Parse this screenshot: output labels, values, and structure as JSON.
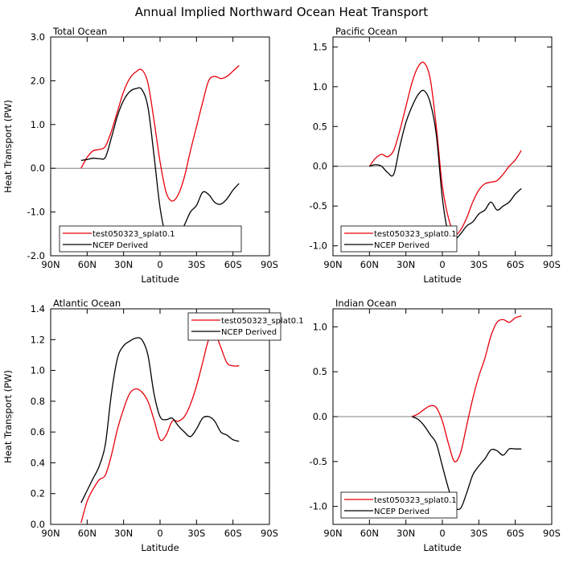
{
  "figure": {
    "title": "Annual Implied Northward Ocean Heat Transport",
    "colors": {
      "model": "#e8000b",
      "ncep": "#000000",
      "zero_line": "#808080"
    }
  },
  "chart_data": [
    {
      "type": "line",
      "title": "Total Ocean",
      "xlabel": "Latitude",
      "ylabel": "Heat Transport (PW)",
      "xlim": [
        -90,
        90
      ],
      "ylim": [
        -2.0,
        3.0
      ],
      "x_ticks": [
        -90,
        -60,
        -30,
        0,
        30,
        60,
        90
      ],
      "x_tick_labels": [
        "90N",
        "60N",
        "30N",
        "0",
        "30S",
        "60S",
        "90S"
      ],
      "y_ticks": [
        -2.0,
        -1.0,
        0.0,
        1.0,
        2.0,
        3.0
      ],
      "y_tick_labels": [
        "-2.0",
        "-1.0",
        "0.0",
        "1.0",
        "2.0",
        "3.0"
      ],
      "zero_line": true,
      "legend": {
        "position": "bottom-left",
        "entries": [
          "test050323_splat0.1",
          "NCEP Derived"
        ]
      },
      "series": [
        {
          "name": "test050323_splat0.1",
          "color": "#e8000b",
          "x": [
            -65,
            -60,
            -55,
            -50,
            -45,
            -40,
            -35,
            -30,
            -25,
            -20,
            -15,
            -10,
            -5,
            0,
            5,
            10,
            15,
            20,
            25,
            30,
            35,
            40,
            45,
            50,
            55,
            60,
            65
          ],
          "y": [
            0.0,
            0.25,
            0.4,
            0.43,
            0.5,
            0.85,
            1.3,
            1.75,
            2.05,
            2.2,
            2.25,
            1.95,
            1.1,
            0.15,
            -0.55,
            -0.75,
            -0.6,
            -0.2,
            0.4,
            0.95,
            1.5,
            2.0,
            2.1,
            2.05,
            2.1,
            2.22,
            2.35
          ]
        },
        {
          "name": "NCEP Derived",
          "color": "#000000",
          "x": [
            -65,
            -60,
            -55,
            -50,
            -45,
            -40,
            -35,
            -30,
            -25,
            -20,
            -15,
            -10,
            -5,
            0,
            5,
            10,
            15,
            20,
            25,
            30,
            35,
            40,
            45,
            50,
            55,
            60,
            65
          ],
          "y": [
            0.18,
            0.2,
            0.23,
            0.22,
            0.25,
            0.7,
            1.2,
            1.55,
            1.75,
            1.82,
            1.8,
            1.4,
            0.3,
            -0.9,
            -1.55,
            -1.65,
            -1.55,
            -1.3,
            -1.0,
            -0.85,
            -0.55,
            -0.6,
            -0.78,
            -0.82,
            -0.7,
            -0.5,
            -0.35
          ]
        }
      ]
    },
    {
      "type": "line",
      "title": "Pacific Ocean",
      "xlabel": "Latitude",
      "ylabel": "",
      "xlim": [
        -90,
        90
      ],
      "ylim": [
        -1.125,
        1.625
      ],
      "x_ticks": [
        -90,
        -60,
        -30,
        0,
        30,
        60,
        90
      ],
      "x_tick_labels": [
        "90N",
        "60N",
        "30N",
        "0",
        "30S",
        "60S",
        "90S"
      ],
      "y_ticks": [
        -1.0,
        -0.5,
        0.0,
        0.5,
        1.0,
        1.5
      ],
      "y_tick_labels": [
        "-1.0",
        "-0.5",
        "0.0",
        "0.5",
        "1.0",
        "1.5"
      ],
      "zero_line": true,
      "legend": {
        "position": "bottom-left",
        "entries": [
          "test050323_splat0.1",
          "NCEP Derived"
        ]
      },
      "series": [
        {
          "name": "test050323_splat0.1",
          "color": "#e8000b",
          "x": [
            -60,
            -55,
            -50,
            -45,
            -40,
            -35,
            -30,
            -25,
            -20,
            -15,
            -10,
            -5,
            0,
            5,
            10,
            15,
            20,
            25,
            30,
            35,
            40,
            45,
            50,
            55,
            60,
            65
          ],
          "y": [
            0.0,
            0.1,
            0.15,
            0.12,
            0.2,
            0.45,
            0.75,
            1.05,
            1.25,
            1.3,
            1.1,
            0.5,
            -0.25,
            -0.65,
            -0.85,
            -0.8,
            -0.65,
            -0.45,
            -0.3,
            -0.22,
            -0.2,
            -0.18,
            -0.1,
            0.0,
            0.08,
            0.2
          ]
        },
        {
          "name": "NCEP Derived",
          "color": "#000000",
          "x": [
            -60,
            -55,
            -50,
            -45,
            -40,
            -35,
            -30,
            -25,
            -20,
            -15,
            -10,
            -5,
            0,
            5,
            10,
            15,
            20,
            25,
            30,
            35,
            40,
            45,
            50,
            55,
            60,
            65
          ],
          "y": [
            0.0,
            0.02,
            0.0,
            -0.08,
            -0.1,
            0.25,
            0.55,
            0.75,
            0.9,
            0.95,
            0.8,
            0.4,
            -0.4,
            -0.85,
            -0.92,
            -0.85,
            -0.75,
            -0.7,
            -0.6,
            -0.55,
            -0.45,
            -0.55,
            -0.5,
            -0.45,
            -0.35,
            -0.28
          ]
        }
      ]
    },
    {
      "type": "line",
      "title": "Atlantic Ocean",
      "xlabel": "Latitude",
      "ylabel": "Heat Transport (PW)",
      "xlim": [
        -90,
        90
      ],
      "ylim": [
        0.0,
        1.4
      ],
      "x_ticks": [
        -90,
        -60,
        -30,
        0,
        30,
        60,
        90
      ],
      "x_tick_labels": [
        "90N",
        "60N",
        "30N",
        "0",
        "30S",
        "60S",
        "90S"
      ],
      "y_ticks": [
        0.0,
        0.2,
        0.4,
        0.6,
        0.8,
        1.0,
        1.2,
        1.4
      ],
      "y_tick_labels": [
        "0.0",
        "0.2",
        "0.4",
        "0.6",
        "0.8",
        "1.0",
        "1.2",
        "1.4"
      ],
      "zero_line": false,
      "legend": {
        "position": "top-right",
        "entries": [
          "test050323_splat0.1",
          "NCEP Derived"
        ]
      },
      "series": [
        {
          "name": "test050323_splat0.1",
          "color": "#e8000b",
          "x": [
            -65,
            -60,
            -55,
            -50,
            -45,
            -40,
            -35,
            -30,
            -25,
            -20,
            -15,
            -10,
            -5,
            0,
            5,
            10,
            15,
            20,
            25,
            30,
            35,
            40,
            45,
            50,
            55,
            60,
            65
          ],
          "y": [
            0.01,
            0.15,
            0.23,
            0.29,
            0.32,
            0.45,
            0.62,
            0.75,
            0.85,
            0.88,
            0.86,
            0.8,
            0.68,
            0.55,
            0.58,
            0.67,
            0.67,
            0.7,
            0.78,
            0.9,
            1.05,
            1.2,
            1.24,
            1.15,
            1.05,
            1.03,
            1.03
          ]
        },
        {
          "name": "NCEP Derived",
          "color": "#000000",
          "x": [
            -65,
            -60,
            -55,
            -50,
            -45,
            -40,
            -35,
            -30,
            -25,
            -20,
            -15,
            -10,
            -5,
            0,
            5,
            10,
            15,
            20,
            25,
            30,
            35,
            40,
            45,
            50,
            55,
            60,
            65
          ],
          "y": [
            0.14,
            0.22,
            0.3,
            0.38,
            0.52,
            0.85,
            1.08,
            1.16,
            1.19,
            1.21,
            1.2,
            1.1,
            0.85,
            0.7,
            0.68,
            0.69,
            0.64,
            0.6,
            0.57,
            0.62,
            0.69,
            0.7,
            0.67,
            0.6,
            0.58,
            0.55,
            0.54
          ]
        }
      ]
    },
    {
      "type": "line",
      "title": "Indian Ocean",
      "xlabel": "Latitude",
      "ylabel": "",
      "xlim": [
        -90,
        90
      ],
      "ylim": [
        -1.2,
        1.2
      ],
      "x_ticks": [
        -90,
        -60,
        -30,
        0,
        30,
        60,
        90
      ],
      "x_tick_labels": [
        "90N",
        "60N",
        "30N",
        "0",
        "30S",
        "60S",
        "90S"
      ],
      "y_ticks": [
        -1.0,
        -0.5,
        0.0,
        0.5,
        1.0
      ],
      "y_tick_labels": [
        "-1.0",
        "-0.5",
        "0.0",
        "0.5",
        "1.0"
      ],
      "zero_line": true,
      "legend": {
        "position": "bottom-left",
        "entries": [
          "test050323_splat0.1",
          "NCEP Derived"
        ]
      },
      "series": [
        {
          "name": "test050323_splat0.1",
          "color": "#e8000b",
          "x": [
            -25,
            -20,
            -15,
            -10,
            -5,
            0,
            5,
            10,
            15,
            20,
            25,
            30,
            35,
            40,
            45,
            50,
            55,
            60,
            65
          ],
          "y": [
            0.0,
            0.03,
            0.08,
            0.12,
            0.1,
            -0.05,
            -0.3,
            -0.5,
            -0.4,
            -0.1,
            0.2,
            0.45,
            0.65,
            0.9,
            1.05,
            1.08,
            1.05,
            1.1,
            1.12
          ]
        },
        {
          "name": "NCEP Derived",
          "color": "#000000",
          "x": [
            -25,
            -20,
            -15,
            -10,
            -5,
            0,
            5,
            10,
            15,
            20,
            25,
            30,
            35,
            40,
            45,
            50,
            55,
            60,
            65
          ],
          "y": [
            0.0,
            -0.03,
            -0.1,
            -0.2,
            -0.3,
            -0.55,
            -0.8,
            -1.0,
            -1.02,
            -0.85,
            -0.65,
            -0.55,
            -0.47,
            -0.37,
            -0.38,
            -0.43,
            -0.36,
            -0.36,
            -0.36
          ]
        }
      ]
    }
  ]
}
